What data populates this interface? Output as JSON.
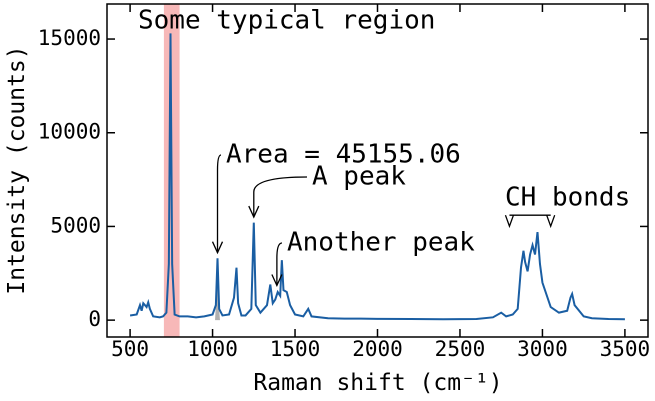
{
  "chart_data": {
    "type": "line",
    "title": "Some typical region",
    "x_label": "Raman shift (cm⁻¹)",
    "y_label": "Intensity (counts)",
    "xlim": [
      360,
      3640
    ],
    "ylim": [
      -900,
      16870
    ],
    "xticks": [
      500,
      1000,
      1500,
      2000,
      2500,
      3000,
      3500
    ],
    "yticks": [
      0,
      5000,
      10000,
      15000
    ],
    "color": "#1a5ea3",
    "x": [
      500,
      540,
      560,
      570,
      580,
      600,
      610,
      620,
      640,
      680,
      700,
      720,
      735,
      745,
      755,
      770,
      800,
      850,
      900,
      950,
      1000,
      1020,
      1030,
      1040,
      1060,
      1100,
      1130,
      1145,
      1155,
      1175,
      1200,
      1235,
      1250,
      1262,
      1290,
      1330,
      1350,
      1365,
      1380,
      1395,
      1410,
      1420,
      1430,
      1450,
      1470,
      1500,
      1550,
      1580,
      1600,
      1700,
      1800,
      1900,
      2000,
      2200,
      2400,
      2600,
      2700,
      2750,
      2780,
      2820,
      2850,
      2870,
      2885,
      2895,
      2910,
      2925,
      2940,
      2955,
      2970,
      2985,
      3000,
      3050,
      3100,
      3150,
      3170,
      3180,
      3195,
      3250,
      3300,
      3400,
      3500
    ],
    "values": [
      250,
      300,
      800,
      500,
      900,
      700,
      950,
      600,
      200,
      150,
      200,
      400,
      3000,
      15300,
      3000,
      300,
      200,
      200,
      150,
      200,
      300,
      800,
      3300,
      600,
      250,
      300,
      1200,
      2800,
      900,
      250,
      250,
      600,
      5200,
      800,
      400,
      800,
      1900,
      900,
      1100,
      1500,
      1300,
      3200,
      1600,
      1500,
      800,
      300,
      200,
      600,
      200,
      100,
      80,
      80,
      70,
      60,
      50,
      60,
      150,
      400,
      200,
      300,
      600,
      2800,
      3700,
      3100,
      2600,
      3500,
      4000,
      3500,
      4700,
      3000,
      2000,
      700,
      400,
      500,
      1200,
      1400,
      800,
      200,
      100,
      60,
      50
    ],
    "span": [
      705,
      800
    ],
    "span_color": "#f4a0a0",
    "area_range": [
      1015,
      1045
    ],
    "area_color": "#b0b0b0",
    "annotations": [
      {
        "text": "Area = 45155.06",
        "x": 1030,
        "y": 3600
      },
      {
        "text": "A peak",
        "x": 1250,
        "y": 5500
      },
      {
        "text": "Another peak",
        "x": 1390,
        "y": 1850
      }
    ],
    "bracket": {
      "text": "CH bonds",
      "x": [
        2800,
        3050
      ],
      "y": 5600
    }
  }
}
